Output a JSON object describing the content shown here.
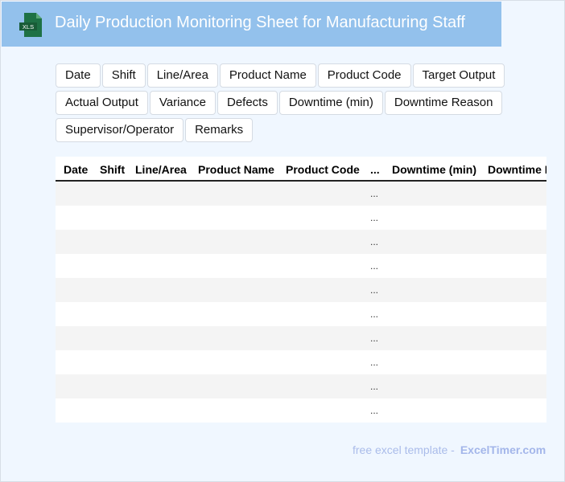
{
  "header": {
    "title": "Daily Production Monitoring Sheet for Manufacturing Staff",
    "icon": "xls-file-icon",
    "icon_label": "XLS",
    "banner_color": "#93c1ec"
  },
  "fields": [
    "Date",
    "Shift",
    "Line/Area",
    "Product Name",
    "Product Code",
    "Target Output",
    "Actual Output",
    "Variance",
    "Defects",
    "Downtime (min)",
    "Downtime Reason",
    "Supervisor/Operator",
    "Remarks"
  ],
  "table": {
    "columns": [
      "Date",
      "Shift",
      "Line/Area",
      "Product Name",
      "Product Code",
      "...",
      "Downtime (min)",
      "Downtime Reason"
    ],
    "rows": [
      "...",
      "...",
      "...",
      "...",
      "...",
      "...",
      "...",
      "...",
      "...",
      "..."
    ]
  },
  "footer": {
    "text": "free excel template -",
    "brand": "ExcelTimer.com"
  }
}
